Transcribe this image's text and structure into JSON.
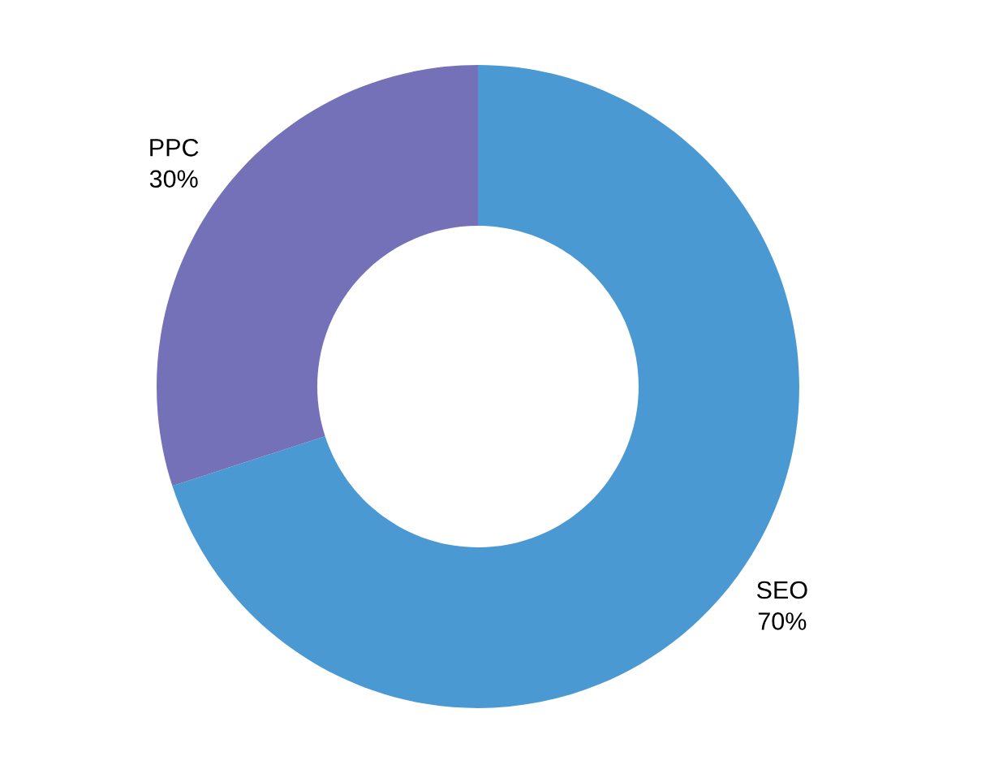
{
  "chart_data": {
    "type": "donut",
    "categories": [
      "SEO",
      "PPC"
    ],
    "values": [
      70,
      30
    ],
    "colors": [
      "#4a99d3",
      "#7571b9"
    ],
    "value_labels": [
      "70%",
      "30%"
    ]
  }
}
